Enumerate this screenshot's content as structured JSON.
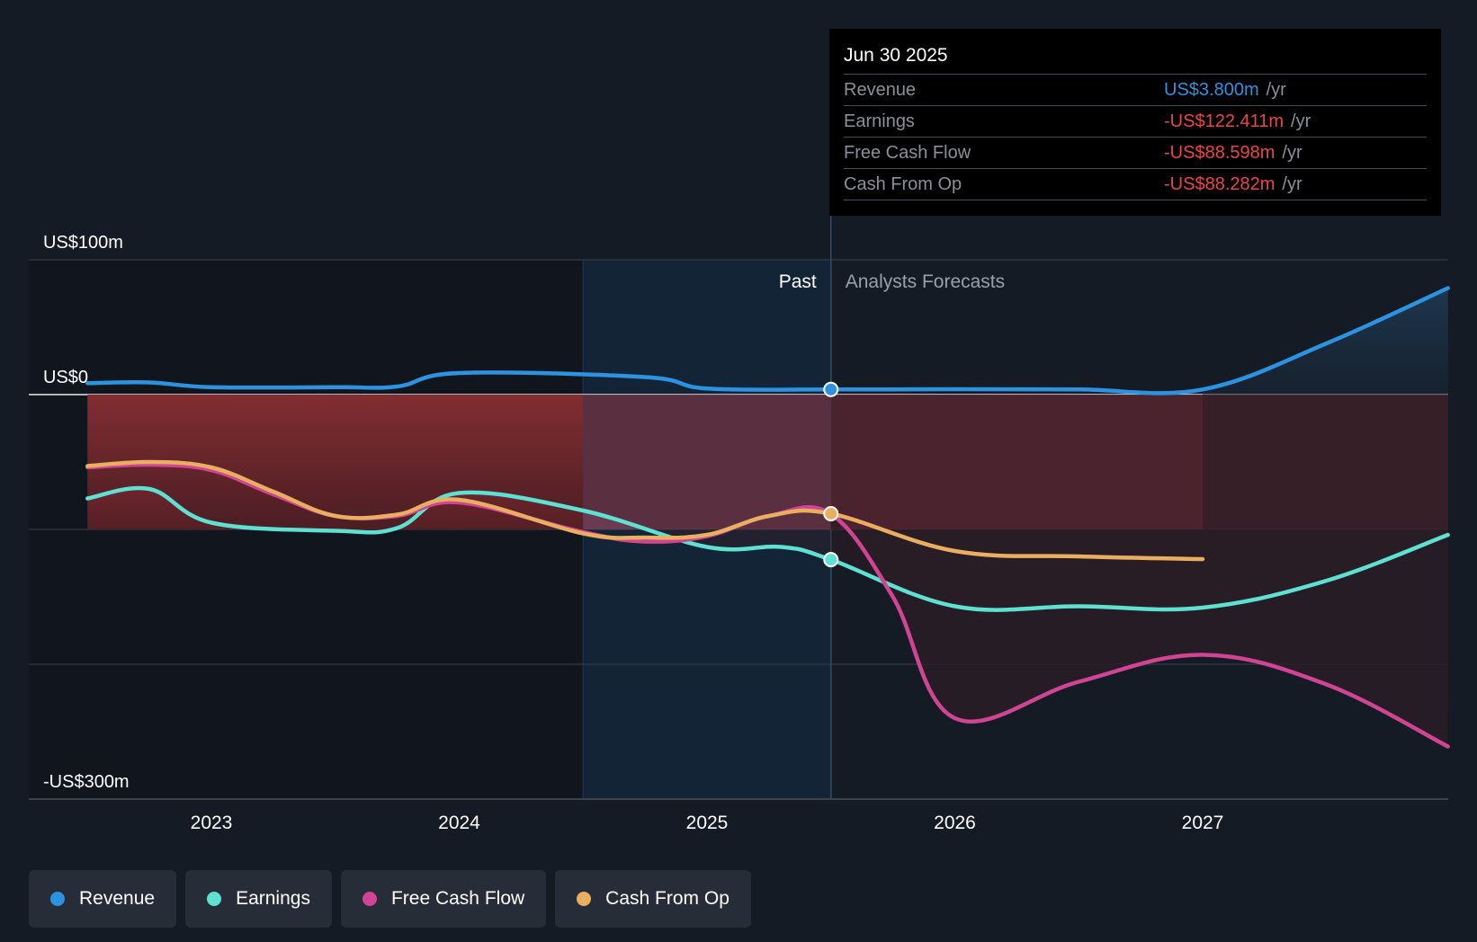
{
  "chart_data": {
    "type": "line",
    "title": "",
    "x_ticks": [
      "2023",
      "2024",
      "2025",
      "2026",
      "2027"
    ],
    "x_tick_values": [
      2023.0,
      2024.0,
      2025.0,
      2026.0,
      2027.0
    ],
    "xlim": [
      2022.27,
      2027.99
    ],
    "ylim": [
      -300,
      100
    ],
    "y_labels": [
      "US$100m",
      "US$0",
      "-US$300m"
    ],
    "y_label_values": [
      100,
      0,
      -300
    ],
    "gridlines": [
      100,
      0,
      -100,
      -200,
      -300
    ],
    "past_label": "Past",
    "forecast_label": "Analysts Forecasts",
    "past_divider_x": 2025.5,
    "past_highlight_start": 2024.5,
    "series": [
      {
        "name": "Revenue",
        "color": "#2d93e0",
        "points": [
          [
            2022.5,
            8.5
          ],
          [
            2022.75,
            9
          ],
          [
            2023.0,
            5.5
          ],
          [
            2023.5,
            5.5
          ],
          [
            2023.75,
            6
          ],
          [
            2024.0,
            16
          ],
          [
            2024.75,
            13
          ],
          [
            2025.0,
            4.5
          ],
          [
            2025.5,
            3.8
          ],
          [
            2026.0,
            4
          ],
          [
            2026.5,
            3.8
          ],
          [
            2027.0,
            3.8
          ],
          [
            2027.5,
            38
          ],
          [
            2027.99,
            79
          ]
        ]
      },
      {
        "name": "Earnings",
        "color": "#5ee0d2",
        "points": [
          [
            2022.5,
            -77
          ],
          [
            2022.75,
            -70
          ],
          [
            2023.0,
            -95
          ],
          [
            2023.5,
            -101
          ],
          [
            2023.75,
            -99
          ],
          [
            2024.0,
            -73
          ],
          [
            2024.5,
            -86
          ],
          [
            2025.0,
            -113
          ],
          [
            2025.3,
            -113
          ],
          [
            2025.5,
            -122.4
          ],
          [
            2026.0,
            -157
          ],
          [
            2026.5,
            -157
          ],
          [
            2027.0,
            -158
          ],
          [
            2027.5,
            -138
          ],
          [
            2027.99,
            -104
          ]
        ]
      },
      {
        "name": "Free Cash Flow",
        "color": "#d04593",
        "points": [
          [
            2022.5,
            -54
          ],
          [
            2022.75,
            -52
          ],
          [
            2023.0,
            -56
          ],
          [
            2023.25,
            -74
          ],
          [
            2023.5,
            -90
          ],
          [
            2023.75,
            -90
          ],
          [
            2024.0,
            -80
          ],
          [
            2024.5,
            -102
          ],
          [
            2024.75,
            -109
          ],
          [
            2025.0,
            -105
          ],
          [
            2025.25,
            -90
          ],
          [
            2025.5,
            -88.6
          ],
          [
            2025.75,
            -150
          ],
          [
            2026.0,
            -240
          ],
          [
            2026.5,
            -213
          ],
          [
            2027.0,
            -193
          ],
          [
            2027.5,
            -215
          ],
          [
            2027.99,
            -261
          ]
        ]
      },
      {
        "name": "Cash From Op",
        "color": "#e9ae60",
        "points": [
          [
            2022.5,
            -53
          ],
          [
            2022.75,
            -50
          ],
          [
            2023.0,
            -54
          ],
          [
            2023.25,
            -72
          ],
          [
            2023.5,
            -90
          ],
          [
            2023.75,
            -89
          ],
          [
            2024.0,
            -78
          ],
          [
            2024.5,
            -103
          ],
          [
            2024.75,
            -106
          ],
          [
            2025.0,
            -104
          ],
          [
            2025.25,
            -90
          ],
          [
            2025.5,
            -88.3
          ],
          [
            2026.0,
            -116
          ],
          [
            2026.5,
            -120
          ],
          [
            2027.0,
            -122
          ]
        ]
      }
    ],
    "markers": [
      {
        "series": "Revenue",
        "x": 2025.5,
        "y": 3.8
      },
      {
        "series": "Earnings",
        "x": 2025.5,
        "y": -122.4
      },
      {
        "series": "Cash From Op",
        "x": 2025.5,
        "y": -88.3
      }
    ]
  },
  "tooltip": {
    "date": "Jun 30 2025",
    "rows": [
      {
        "label": "Revenue",
        "value": "US$3.800m",
        "unit": "/yr",
        "color": "#2d93e0"
      },
      {
        "label": "Earnings",
        "value": "-US$122.411m",
        "unit": "/yr",
        "color": "#e8464b"
      },
      {
        "label": "Free Cash Flow",
        "value": "-US$88.598m",
        "unit": "/yr",
        "color": "#e8464b"
      },
      {
        "label": "Cash From Op",
        "value": "-US$88.282m",
        "unit": "/yr",
        "color": "#e8464b"
      }
    ]
  },
  "legend": [
    {
      "label": "Revenue",
      "color": "#2d93e0"
    },
    {
      "label": "Earnings",
      "color": "#5ee0d2"
    },
    {
      "label": "Free Cash Flow",
      "color": "#d04593"
    },
    {
      "label": "Cash From Op",
      "color": "#e9ae60"
    }
  ]
}
